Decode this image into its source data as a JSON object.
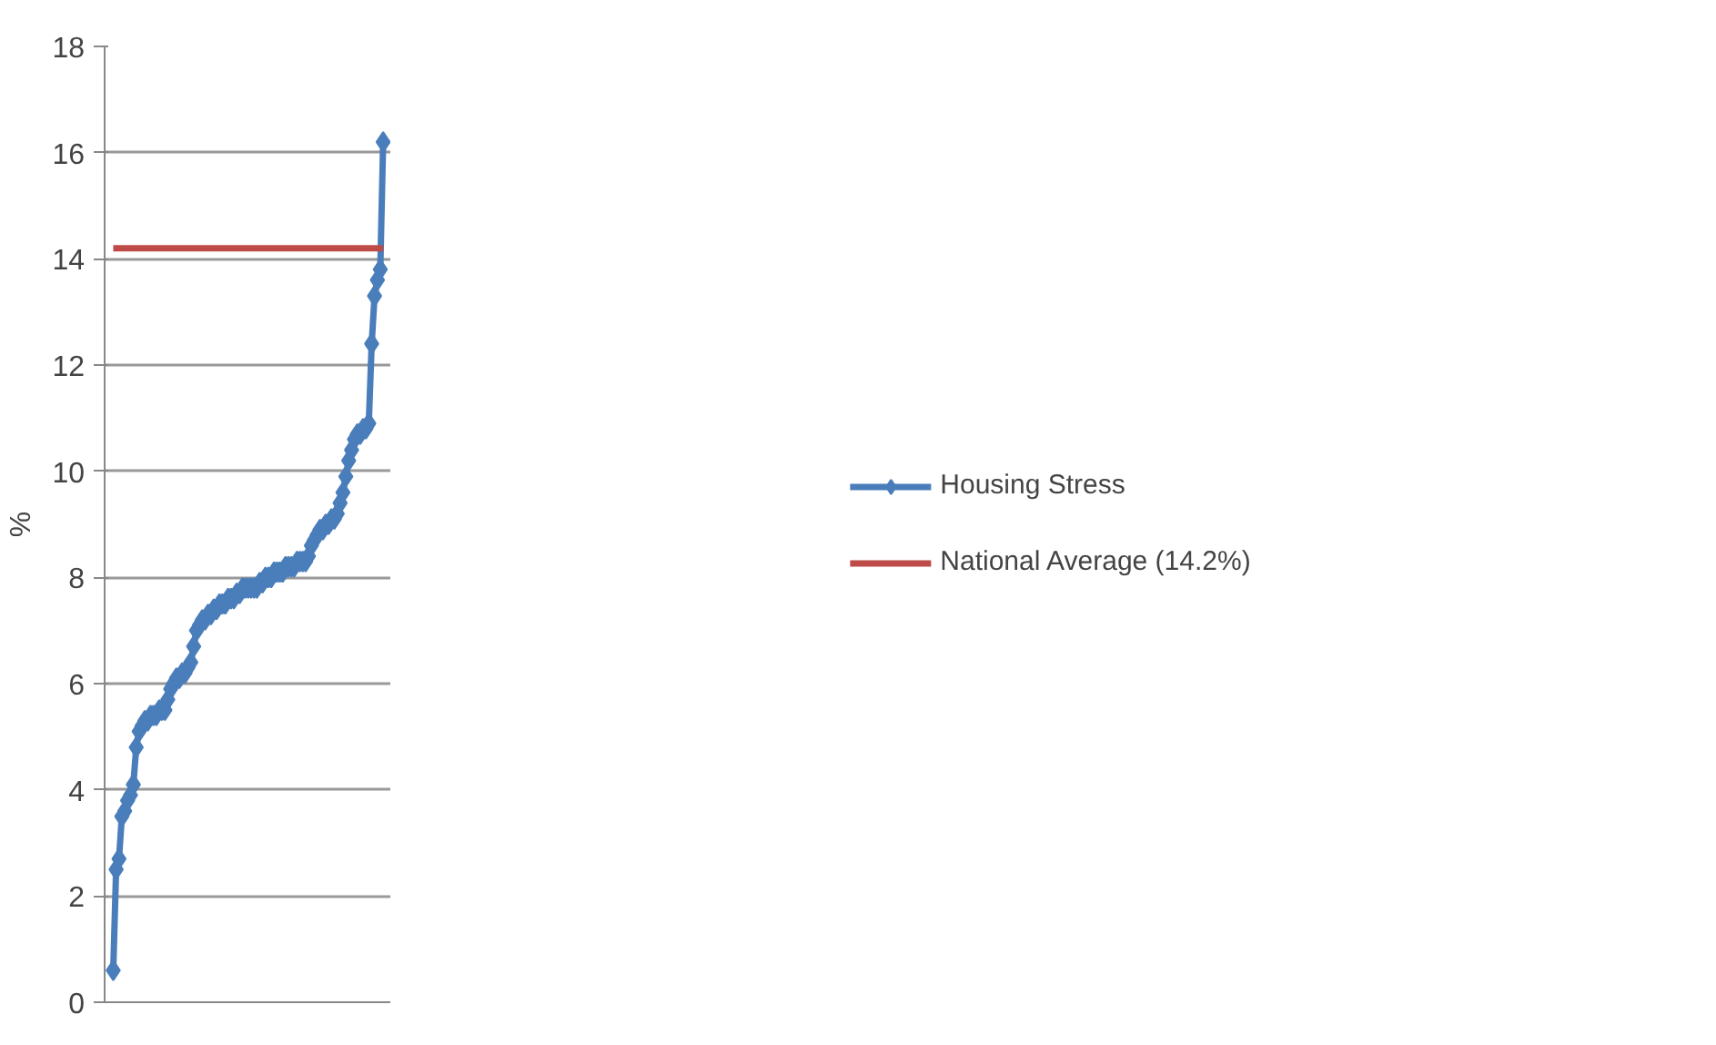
{
  "chart_data": {
    "type": "line",
    "ylabel": "%",
    "categories": [
      null,
      null,
      null,
      null,
      null,
      null,
      null,
      null,
      null,
      null,
      null,
      null,
      null,
      null,
      null,
      null,
      null,
      null,
      null,
      null,
      null,
      null,
      null,
      null,
      null,
      null,
      null,
      null,
      null,
      null,
      null,
      null,
      null,
      null,
      null,
      null,
      null,
      null,
      null,
      null,
      null,
      null,
      null,
      null,
      null,
      null,
      null,
      null,
      null,
      null,
      null,
      null,
      null,
      null,
      null,
      null,
      null,
      null,
      null,
      null,
      null,
      null,
      null,
      null,
      null,
      null,
      null,
      null,
      null,
      null,
      null,
      null,
      null,
      null,
      null,
      null,
      null,
      null,
      null,
      null,
      null,
      null,
      null,
      null,
      null,
      null,
      null,
      null,
      null,
      null,
      null,
      null,
      null,
      null,
      null
    ],
    "series": [
      {
        "name": "Housing Stress",
        "color": "#4a7ebb",
        "marker": "diamond",
        "values": [
          0.6,
          2.5,
          2.7,
          3.5,
          3.6,
          3.8,
          3.9,
          4.1,
          4.8,
          5.1,
          5.2,
          5.3,
          5.3,
          5.4,
          5.4,
          5.4,
          5.5,
          5.5,
          5.5,
          5.7,
          5.9,
          6.0,
          6.1,
          6.1,
          6.2,
          6.2,
          6.3,
          6.4,
          6.7,
          7.0,
          7.1,
          7.2,
          7.2,
          7.3,
          7.3,
          7.4,
          7.4,
          7.5,
          7.5,
          7.5,
          7.6,
          7.6,
          7.6,
          7.7,
          7.7,
          7.8,
          7.8,
          7.8,
          7.8,
          7.8,
          7.8,
          7.9,
          7.9,
          8.0,
          8.0,
          8.0,
          8.1,
          8.1,
          8.1,
          8.1,
          8.2,
          8.2,
          8.2,
          8.2,
          8.3,
          8.3,
          8.3,
          8.3,
          8.4,
          8.6,
          8.7,
          8.8,
          8.9,
          8.9,
          9.0,
          9.0,
          9.1,
          9.1,
          9.2,
          9.4,
          9.6,
          9.9,
          10.2,
          10.4,
          10.6,
          10.7,
          10.7,
          10.8,
          10.8,
          10.9,
          12.4,
          13.3,
          13.6,
          13.8,
          16.2
        ]
      },
      {
        "name": "National Average (14.2%)",
        "color": "#be4b48",
        "marker": "none",
        "values": [
          14.2,
          14.2,
          14.2,
          14.2,
          14.2,
          14.2,
          14.2,
          14.2,
          14.2,
          14.2,
          14.2,
          14.2,
          14.2,
          14.2,
          14.2,
          14.2,
          14.2,
          14.2,
          14.2,
          14.2,
          14.2,
          14.2,
          14.2,
          14.2,
          14.2,
          14.2,
          14.2,
          14.2,
          14.2,
          14.2,
          14.2,
          14.2,
          14.2,
          14.2,
          14.2,
          14.2,
          14.2,
          14.2,
          14.2,
          14.2,
          14.2,
          14.2,
          14.2,
          14.2,
          14.2,
          14.2,
          14.2,
          14.2,
          14.2,
          14.2,
          14.2,
          14.2,
          14.2,
          14.2,
          14.2,
          14.2,
          14.2,
          14.2,
          14.2,
          14.2,
          14.2,
          14.2,
          14.2,
          14.2,
          14.2,
          14.2,
          14.2,
          14.2,
          14.2,
          14.2,
          14.2,
          14.2,
          14.2,
          14.2,
          14.2,
          14.2,
          14.2,
          14.2,
          14.2,
          14.2,
          14.2,
          14.2,
          14.2,
          14.2,
          14.2,
          14.2,
          14.2,
          14.2,
          14.2,
          14.2,
          14.2,
          14.2,
          14.2,
          14.2,
          14.2
        ]
      }
    ],
    "ylim": [
      0,
      18
    ],
    "yticks": [
      0,
      2,
      4,
      6,
      8,
      10,
      12,
      14,
      16,
      18
    ],
    "grid": "y",
    "legend": "right"
  }
}
